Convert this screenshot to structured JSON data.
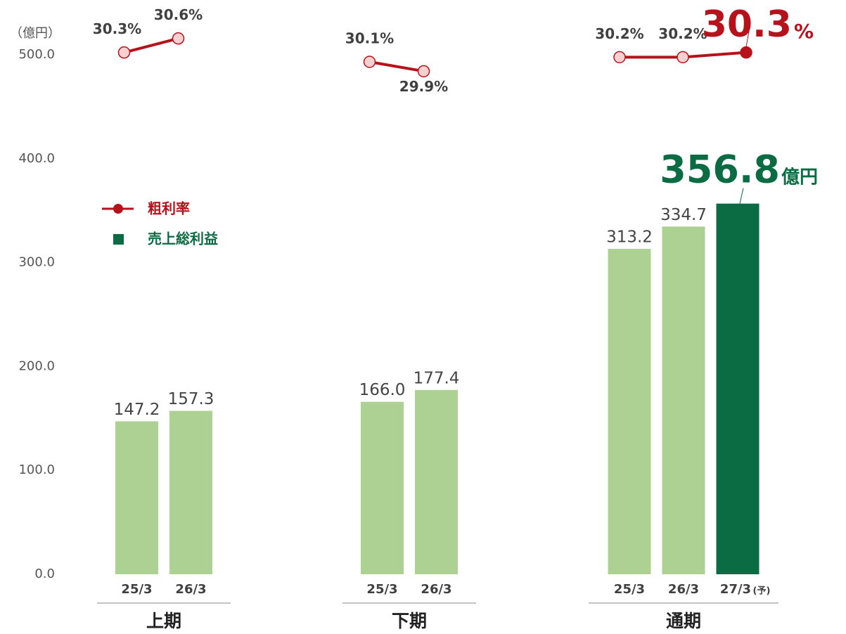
{
  "chart_data": {
    "type": "bar",
    "y_unit": "（億円）",
    "ylim": [
      0,
      500
    ],
    "yticks": [
      {
        "value": 0,
        "label": "0.0"
      },
      {
        "value": 100,
        "label": "100.0"
      },
      {
        "value": 200,
        "label": "200.0"
      },
      {
        "value": 300,
        "label": "300.0"
      },
      {
        "value": 400,
        "label": "400.0"
      },
      {
        "value": 500,
        "label": "500.0"
      }
    ],
    "y2lim": [
      29.5,
      30.7
    ],
    "groups": [
      {
        "name": "上期",
        "categories": [
          "25/3",
          "26/3"
        ]
      },
      {
        "name": "下期",
        "categories": [
          "25/3",
          "26/3"
        ]
      },
      {
        "name": "通期",
        "categories": [
          "25/3",
          "26/3",
          "27/3"
        ]
      }
    ],
    "forecast_mark": "(予)",
    "series": [
      {
        "name": "売上総利益",
        "type": "bar",
        "color": "#0b6b42",
        "colors": [
          "#acd192",
          "#acd192",
          "#acd192",
          "#acd192",
          "#acd192",
          "#acd192",
          "#0b6b42"
        ],
        "values": [
          147.2,
          157.3,
          166.0,
          177.4,
          313.2,
          334.7,
          356.8
        ],
        "value_labels": [
          "147.2",
          "157.3",
          "166.0",
          "177.4",
          "313.2",
          "334.7",
          "356.8"
        ],
        "highlight_unit": "億円"
      },
      {
        "name": "粗利率",
        "type": "line",
        "axis": "y2",
        "color": "#b5121b",
        "marker_colors": [
          "#f9d0d0",
          "#f9d0d0",
          "#f9d0d0",
          "#f9d0d0",
          "#f9d0d0",
          "#f9d0d0",
          "#b5121b"
        ],
        "values": [
          30.3,
          30.6,
          30.1,
          29.9,
          30.2,
          30.2,
          30.3
        ],
        "value_labels": [
          "30.3%",
          "30.6%",
          "30.1%",
          "29.9%",
          "30.2%",
          "30.2%",
          "30.3"
        ],
        "highlight_unit": "%"
      }
    ]
  }
}
